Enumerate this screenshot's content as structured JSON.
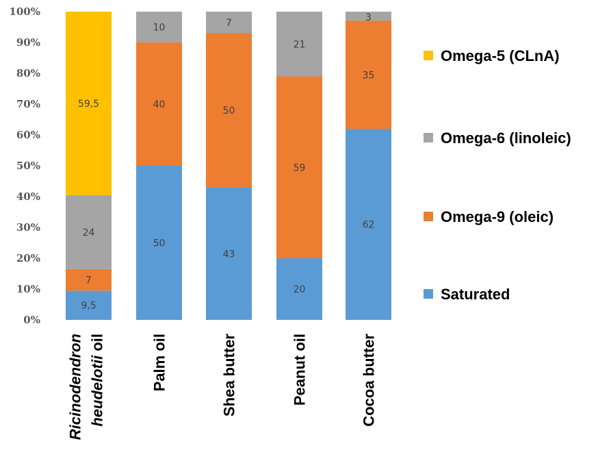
{
  "chart_data": {
    "type": "bar",
    "stacked": true,
    "percent": true,
    "categories": [
      {
        "label": "Ricinodendron heudelotii oil",
        "italic": "Ricinodendron heudelotii",
        "plain": "oil"
      },
      {
        "label": "Palm oil"
      },
      {
        "label": "Shea butter"
      },
      {
        "label": "Peanut oil"
      },
      {
        "label": "Cocoa butter"
      }
    ],
    "series": [
      {
        "name": "Saturated",
        "color": "#5B9BD5",
        "values": [
          9.5,
          50,
          43,
          20,
          62
        ],
        "labels": [
          "9,5",
          "50",
          "43",
          "20",
          "62"
        ]
      },
      {
        "name": "Omega-9 (oleic)",
        "color": "#ED7D31",
        "values": [
          7,
          40,
          50,
          59,
          35
        ],
        "labels": [
          "7",
          "40",
          "50",
          "59",
          "35"
        ]
      },
      {
        "name": "Omega-6 (linoleic)",
        "color": "#A5A5A5",
        "values": [
          24,
          10,
          7,
          21,
          3
        ],
        "labels": [
          "24",
          "10",
          "7",
          "21",
          "3"
        ]
      },
      {
        "name": "Omega-5 (CLnA)",
        "color": "#FFC000",
        "values": [
          59.5,
          0,
          0,
          0,
          0
        ],
        "labels": [
          "59,5",
          "",
          "",
          "",
          ""
        ]
      }
    ],
    "yticks": [
      "0%",
      "10%",
      "20%",
      "30%",
      "40%",
      "50%",
      "60%",
      "70%",
      "80%",
      "90%",
      "100%"
    ],
    "ylim": [
      0,
      100
    ],
    "legend_position": "right",
    "legend_order": [
      "Omega-5 (CLnA)",
      "Omega-6 (linoleic)",
      "Omega-9 (oleic)",
      "Saturated"
    ],
    "grid": false
  }
}
